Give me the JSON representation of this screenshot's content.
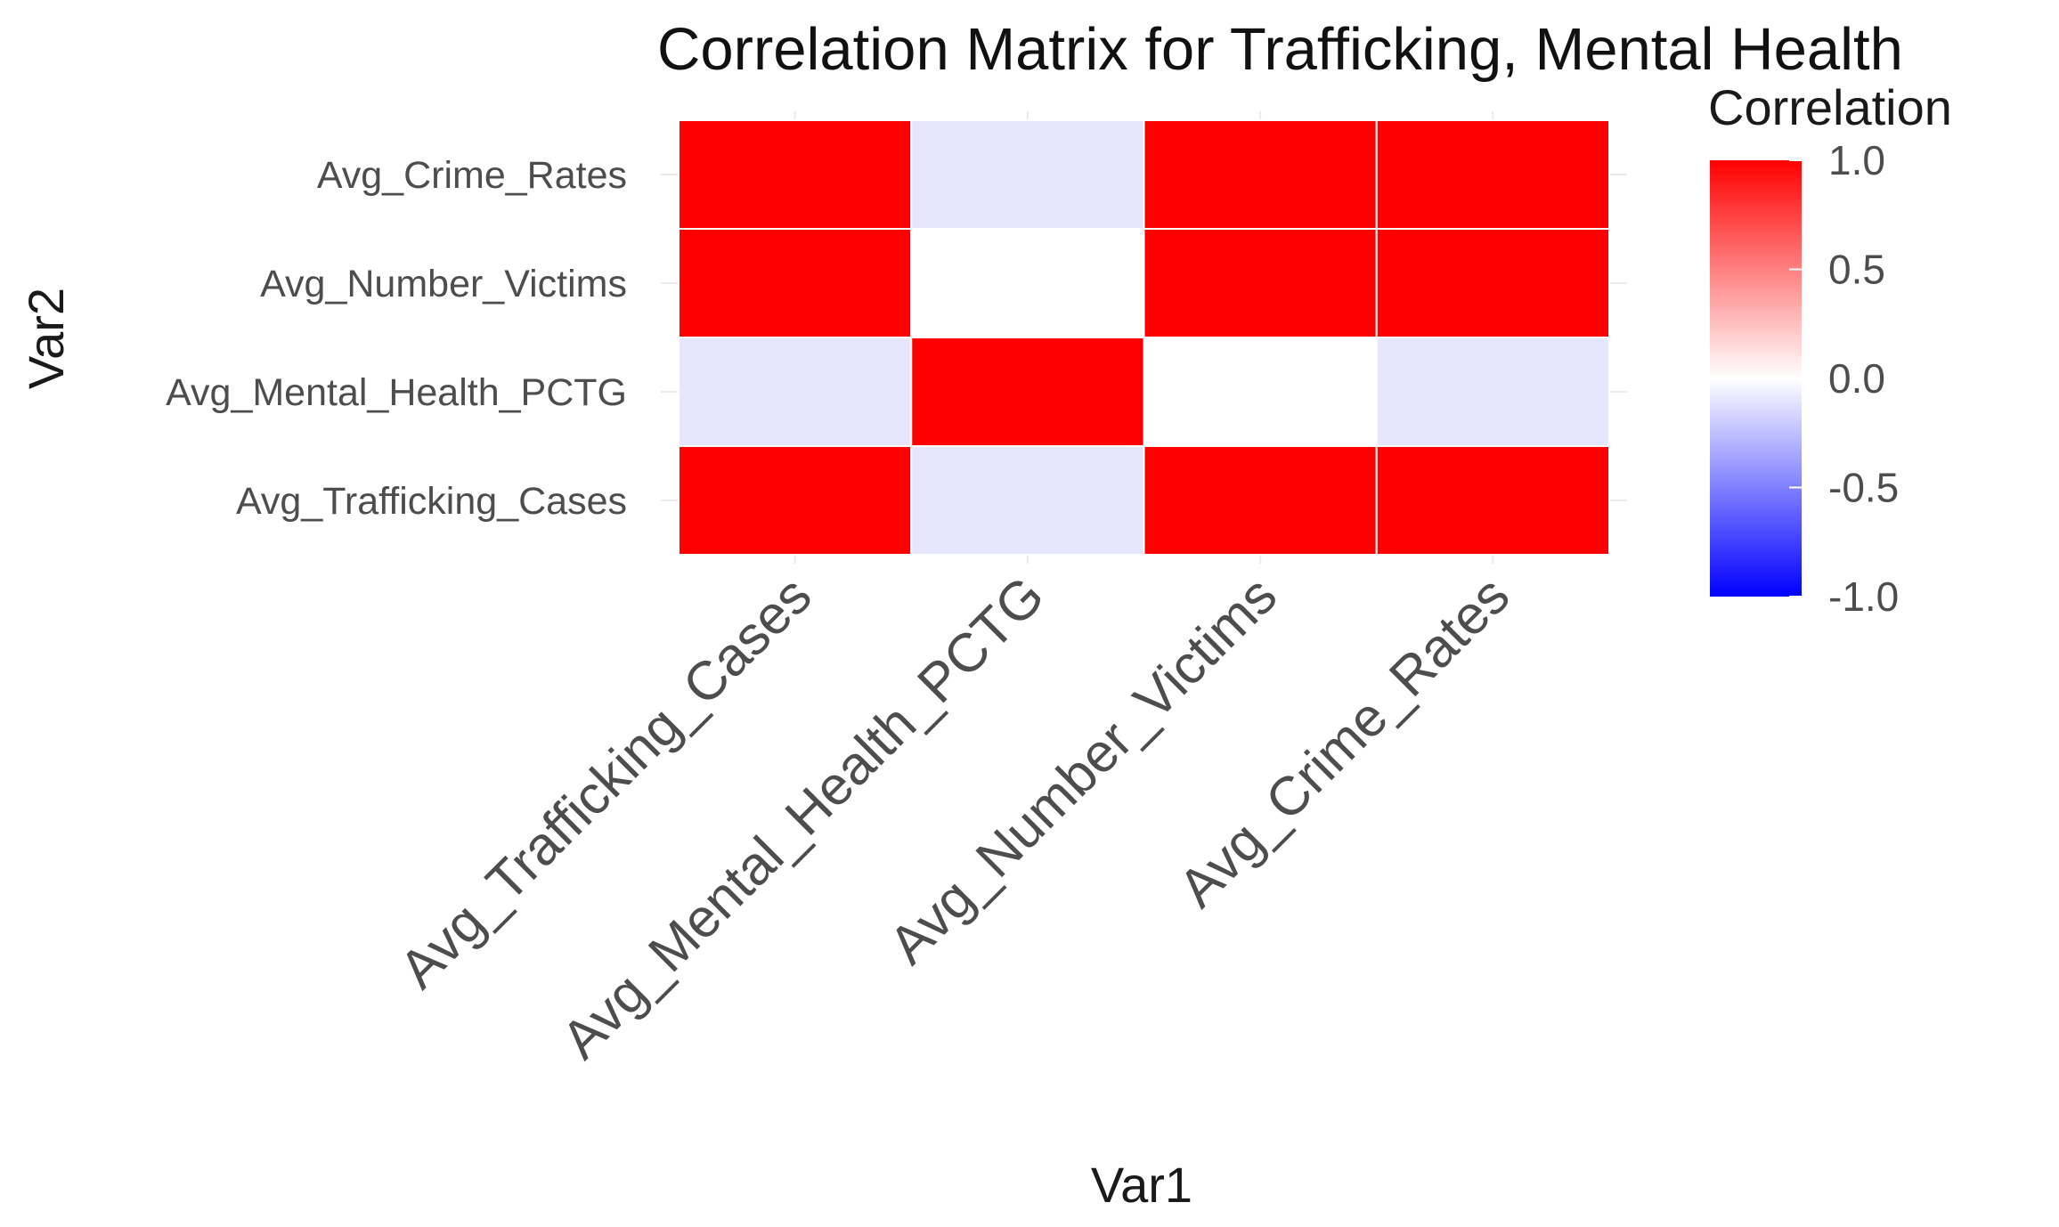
{
  "chart_data": {
    "type": "heatmap",
    "title": "Correlation Matrix for Trafficking, Mental Health",
    "xlabel": "Var1",
    "ylabel": "Var2",
    "x_categories": [
      "Avg_Trafficking_Cases",
      "Avg_Mental_Health_PCTG",
      "Avg_Number_Victims",
      "Avg_Crime_Rates"
    ],
    "y_categories": [
      "Avg_Trafficking_Cases",
      "Avg_Mental_Health_PCTG",
      "Avg_Number_Victims",
      "Avg_Crime_Rates"
    ],
    "values": [
      [
        1.0,
        -0.1,
        1.0,
        1.0
      ],
      [
        -0.1,
        1.0,
        0.0,
        -0.1
      ],
      [
        1.0,
        0.0,
        1.0,
        1.0
      ],
      [
        1.0,
        -0.1,
        1.0,
        1.0
      ]
    ],
    "legend": {
      "title": "Correlation",
      "ticks": [
        "1.0",
        "0.5",
        "0.0",
        "-0.5",
        "-1.0"
      ],
      "range": [
        -1,
        1
      ],
      "placement": "right"
    },
    "colors": {
      "low": "#0000ff",
      "mid": "#ffffff",
      "high": "#ff0000"
    },
    "grid": true
  }
}
